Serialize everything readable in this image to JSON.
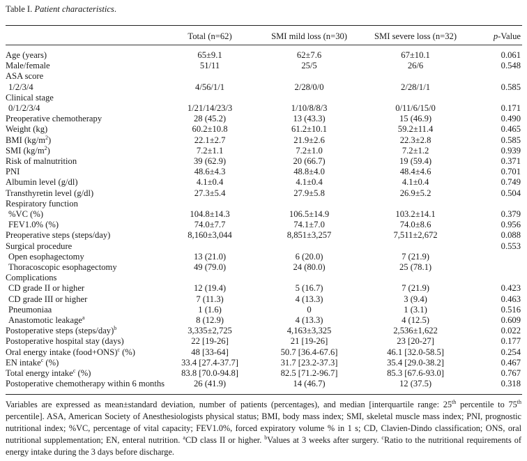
{
  "title": {
    "prefix": "Table I.",
    "caption": "Patient characteristics"
  },
  "headers": [
    "",
    "Total (n=62)",
    "SMI mild loss (n=30)",
    "SMI severe loss (n=32)",
    "p-Value"
  ],
  "rows": [
    {
      "label": "Age (years)",
      "cells": [
        "65±9.1",
        "62±7.6",
        "67±10.1",
        "0.061"
      ]
    },
    {
      "label": "Male/female",
      "cells": [
        "51/11",
        "25/5",
        "26/6",
        "0.548"
      ]
    },
    {
      "label": "ASA score",
      "cells": [
        "",
        "",
        "",
        ""
      ]
    },
    {
      "label": "1/2/3/4",
      "indent": true,
      "cells": [
        "4/56/1/1",
        "2/28/0/0",
        "2/28/1/1",
        "0.585"
      ]
    },
    {
      "label": "Clinical stage",
      "cells": [
        "",
        "",
        "",
        ""
      ]
    },
    {
      "label": "0/1/2/3/4",
      "indent": true,
      "cells": [
        "1/21/14/23/3",
        "1/10/8/8/3",
        "0/11/6/15/0",
        "0.171"
      ]
    },
    {
      "label": "Preoperative chemotherapy",
      "cells": [
        "28 (45.2)",
        "13 (43.3)",
        "15 (46.9)",
        "0.490"
      ]
    },
    {
      "label": "Weight (kg)",
      "cells": [
        "60.2±10.8",
        "61.2±10.1",
        "59.2±11.4",
        "0.465"
      ]
    },
    {
      "label": "BMI (kg/m",
      "sup": "2",
      "after": ")",
      "cells": [
        "22.1±2.7",
        "21.9±2.6",
        "22.3±2.8",
        "0.585"
      ]
    },
    {
      "label": "SMI (kg/m",
      "sup": "2",
      "after": ")",
      "cells": [
        "7.2±1.1",
        "7.2±1.0",
        "7.2±1.2",
        "0.939"
      ]
    },
    {
      "label": "Risk of malnutrition",
      "cells": [
        "39 (62.9)",
        "20 (66.7)",
        "19 (59.4)",
        "0.371"
      ]
    },
    {
      "label": "PNI",
      "cells": [
        "48.6±4.3",
        "48.8±4.0",
        "48.4±4.6",
        "0.701"
      ]
    },
    {
      "label": "Albumin level (g/dl)",
      "cells": [
        "4.1±0.4",
        "4.1±0.4",
        "4.1±0.4",
        "0.749"
      ]
    },
    {
      "label": "Transthyretin level (g/dl)",
      "cells": [
        "27.3±5.4",
        "27.9±5.8",
        "26.9±5.2",
        "0.504"
      ]
    },
    {
      "label": "Respiratory function",
      "cells": [
        "",
        "",
        "",
        ""
      ]
    },
    {
      "label": "%VC (%)",
      "indent": true,
      "cells": [
        "104.8±14.3",
        "106.5±14.9",
        "103.2±14.1",
        "0.379"
      ]
    },
    {
      "label": "FEV1.0% (%)",
      "indent": true,
      "cells": [
        "74.0±7.7",
        "74.1±7.0",
        "74.0±8.6",
        "0.956"
      ]
    },
    {
      "label": "Preoperative steps (steps/day)",
      "cells": [
        "8,160±3,044",
        "8,851±3,257",
        "7,511±2,672",
        "0.088"
      ]
    },
    {
      "label": "Surgical procedure",
      "cells": [
        "",
        "",
        "",
        "0.553"
      ]
    },
    {
      "label": "Open esophagectomy",
      "indent": true,
      "cells": [
        "13 (21.0)",
        "6 (20.0)",
        "7 (21.9)",
        ""
      ]
    },
    {
      "label": "Thoracoscopic esophagectomy",
      "indent": true,
      "cells": [
        "49 (79.0)",
        "24 (80.0)",
        "25 (78.1)",
        ""
      ]
    },
    {
      "label": "Complications",
      "cells": [
        "",
        "",
        "",
        ""
      ]
    },
    {
      "label": "CD grade II or higher",
      "indent": true,
      "cells": [
        "12 (19.4)",
        "5 (16.7)",
        "7 (21.9)",
        "0.423"
      ]
    },
    {
      "label": "CD grade III or higher",
      "indent": true,
      "cells": [
        "7 (11.3)",
        "4 (13.3)",
        "3 (9.4)",
        "0.463"
      ]
    },
    {
      "label": "Pneumoniaa",
      "indent": true,
      "cells": [
        "1 (1.6)",
        "0",
        "1 (3.1)",
        "0.516"
      ]
    },
    {
      "label": "Anastomotic leakage",
      "sup": "a",
      "indent": true,
      "cells": [
        "8 (12.9)",
        "4 (13.3)",
        "4 (12.5)",
        "0.609"
      ]
    },
    {
      "label": "Postoperative steps (steps/day)",
      "sup": "b",
      "cells": [
        "3,335±2,725",
        "4,163±3,325",
        "2,536±1,622",
        "0.022"
      ]
    },
    {
      "label": "Postoperative hospital stay (days)",
      "cells": [
        "22 [19-26]",
        "21 [19-26]",
        "23 [20-27]",
        "0.177"
      ]
    },
    {
      "label": "Oral energy intake (food+ONS)",
      "sup": "c",
      "after": " (%)",
      "cells": [
        "48 [33-64]",
        "50.7 [36.4-67.6]",
        "46.1 [32.0-58.5]",
        "0.254"
      ]
    },
    {
      "label": "EN intake",
      "sup": "c",
      "after": " (%)",
      "cells": [
        "33.4 [27.4-37.7]",
        "31.7 [23.2-37.3]",
        "35.4 [29.0-38.2]",
        "0.467"
      ]
    },
    {
      "label": "Total energy intake",
      "sup": "c",
      "after": " (%)",
      "cells": [
        "83.8 [70.0-94.8]",
        "82.5 [71.2-96.7]",
        "85.3 [67.6-93.0]",
        "0.767"
      ]
    },
    {
      "label": "Postoperative chemotherapy within 6 months",
      "cells": [
        "26 (41.9)",
        "14 (46.7)",
        "12 (37.5)",
        "0.318"
      ]
    }
  ],
  "footnote": [
    {
      "t": "Variables are expressed as mean±standard deviation, number of patients (percentages), and median [interquartile range: 25"
    },
    {
      "t": "th",
      "sup": true
    },
    {
      "t": " percentile to 75"
    },
    {
      "t": "th",
      "sup": true
    },
    {
      "t": " percentile]. ASA, American Society of Anesthesiologists physical status; BMI, body mass index; SMI, skeletal muscle mass index; PNI, prognostic nutritional index; %VC, percentage of vital capacity; FEV1.0%, forced expiratory volume % in 1 s; CD, Clavien-Dindo classification; ONS, oral nutritional supplementation; EN, enteral nutrition. "
    },
    {
      "t": "a",
      "sup": true
    },
    {
      "t": "CD class II or higher. "
    },
    {
      "t": "b",
      "sup": true
    },
    {
      "t": "Values at 3 weeks after surgery. "
    },
    {
      "t": "c",
      "sup": true
    },
    {
      "t": "Ratio to the nutritional requirements of energy intake during the 3 days before discharge."
    }
  ]
}
